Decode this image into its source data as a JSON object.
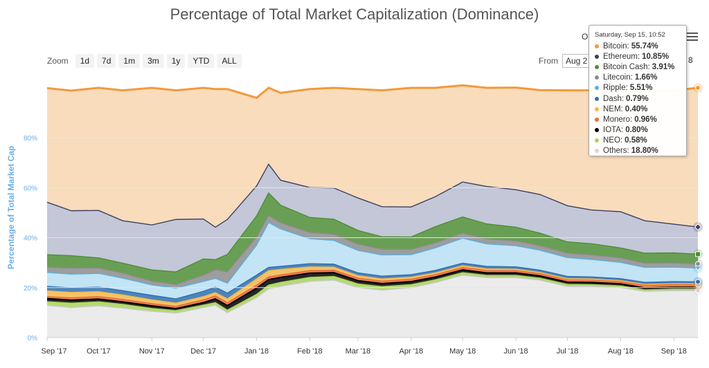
{
  "chart_data": {
    "type": "area",
    "title": "Percentage of Total Market Capitalization (Dominance)",
    "ylabel": "Percentage of Total Market Cap",
    "xlabel": "",
    "ylim": [
      0,
      100
    ],
    "yticks": [
      "0%",
      "20%",
      "40%",
      "60%",
      "80%"
    ],
    "ytick_values": [
      0,
      20,
      40,
      60,
      80
    ],
    "xtick_labels": [
      "Sep '17",
      "Oct '17",
      "Nov '17",
      "Dec '17",
      "Jan '18",
      "Feb '18",
      "Mar '18",
      "Apr '18",
      "May '18",
      "Jun '18",
      "Jul '18",
      "Aug '18",
      "Sep '18"
    ],
    "x": [
      "2017-09-01",
      "2017-09-15",
      "2017-10-01",
      "2017-10-15",
      "2017-11-01",
      "2017-11-15",
      "2017-12-01",
      "2017-12-08",
      "2017-12-15",
      "2018-01-01",
      "2018-01-08",
      "2018-01-15",
      "2018-02-01",
      "2018-02-15",
      "2018-03-01",
      "2018-03-15",
      "2018-04-01",
      "2018-04-15",
      "2018-05-01",
      "2018-05-15",
      "2018-06-01",
      "2018-06-15",
      "2018-07-01",
      "2018-07-15",
      "2018-08-01",
      "2018-08-15",
      "2018-09-01",
      "2018-09-15"
    ],
    "series": [
      {
        "name": "Others",
        "color": "#e8e8e8",
        "values": [
          12.9,
          12,
          12.7,
          11.8,
          10.5,
          9.8,
          12,
          13,
          10,
          16,
          19.5,
          20.5,
          22.5,
          23,
          20,
          19,
          20,
          22,
          25,
          24,
          24,
          23,
          20.5,
          20.5,
          20,
          18.5,
          18.8,
          18.8
        ]
      },
      {
        "name": "NEO",
        "color": "#a8d35a",
        "values": [
          1.5,
          1.8,
          1.6,
          1.5,
          1.2,
          1,
          1,
          1,
          1,
          1.3,
          1.5,
          1.6,
          1.6,
          1.5,
          1.5,
          1.4,
          1.2,
          1.1,
          1,
          0.9,
          0.9,
          0.8,
          0.8,
          0.7,
          0.7,
          0.6,
          0.6,
          0.58
        ]
      },
      {
        "name": "IOTA",
        "color": "#000000",
        "values": [
          1.2,
          1.2,
          1.1,
          1,
          1,
          0.8,
          1,
          1.5,
          1.8,
          2.5,
          2.2,
          2,
          1.7,
          1.5,
          1.3,
          1.2,
          1.2,
          1.1,
          1.1,
          1,
          1,
          0.9,
          0.9,
          0.9,
          0.8,
          0.8,
          0.8,
          0.8
        ]
      },
      {
        "name": "Monero",
        "color": "#e86b3a",
        "values": [
          0.8,
          0.9,
          1,
          1,
          0.9,
          0.9,
          1.1,
          1.2,
          1.2,
          1.2,
          1.1,
          1,
          1,
          1,
          1,
          1,
          1,
          1,
          1,
          1,
          0.9,
          0.9,
          0.9,
          0.9,
          0.9,
          1,
          1,
          0.96
        ]
      },
      {
        "name": "NEM",
        "color": "#f2b84b",
        "values": [
          2.3,
          2.2,
          2,
          1.8,
          1.5,
          1.3,
          1.3,
          1.3,
          1.5,
          2.5,
          2.5,
          2.2,
          1.5,
          1.2,
          1,
          0.9,
          0.8,
          0.7,
          0.7,
          0.6,
          0.6,
          0.5,
          0.5,
          0.5,
          0.4,
          0.4,
          0.4,
          0.4
        ]
      },
      {
        "name": "Dash",
        "color": "#2f6fb0",
        "values": [
          1.8,
          1.8,
          1.8,
          1.7,
          1.8,
          1.7,
          2.1,
          2.2,
          2.3,
          1.5,
          1.3,
          1.2,
          1.3,
          1.2,
          1.1,
          1.1,
          1,
          1,
          1,
          1,
          0.9,
          0.9,
          0.9,
          0.8,
          0.8,
          0.8,
          0.8,
          0.79
        ]
      },
      {
        "name": "Ripple",
        "color": "#b7dff3",
        "values": [
          5.6,
          5.5,
          5.5,
          5,
          4.2,
          4.3,
          4,
          3.5,
          4,
          12,
          18,
          15,
          10,
          9.5,
          9,
          8.5,
          8,
          9,
          10,
          9,
          8.5,
          8,
          7.5,
          7,
          6.5,
          6,
          5.8,
          5.51
        ]
      },
      {
        "name": "Litecoin",
        "color": "#8c8c8c",
        "values": [
          2.1,
          2.4,
          2.2,
          2,
          1.5,
          1.5,
          2.5,
          3.5,
          4.5,
          3.2,
          2.8,
          2.5,
          2.5,
          2.5,
          2.5,
          2.3,
          2.1,
          2,
          2,
          2,
          1.9,
          1.8,
          1.8,
          1.8,
          1.8,
          1.7,
          1.7,
          1.66
        ]
      },
      {
        "name": "Bitcoin Cash",
        "color": "#4f8e36",
        "values": [
          5,
          5,
          4,
          4,
          4.5,
          5,
          6.5,
          4,
          7,
          8.5,
          9,
          7,
          6,
          6,
          5.5,
          5,
          5,
          6.5,
          6.5,
          6,
          5.5,
          5,
          4.5,
          4.5,
          4,
          4,
          4,
          3.91
        ]
      },
      {
        "name": "Ethereum",
        "color": "#b8bdd1",
        "values": [
          21,
          18,
          19,
          17,
          18,
          21,
          16,
          13,
          14,
          12,
          11.5,
          10,
          12,
          12.5,
          13,
          12,
          12,
          12,
          14,
          15,
          15,
          15.5,
          14.5,
          13.5,
          14.5,
          13,
          11.5,
          10.85
        ]
      },
      {
        "name": "Bitcoin",
        "color": "#f7d6b0",
        "values": [
          45.7,
          48.1,
          49.1,
          52.2,
          54.9,
          51.7,
          52.5,
          55.3,
          52.2,
          35.3,
          30.6,
          35,
          39.4,
          40.1,
          43.6,
          46.6,
          47.7,
          43.6,
          38.7,
          39.5,
          40.9,
          41.8,
          46.2,
          47.9,
          48.6,
          52.2,
          53.6,
          55.74
        ]
      }
    ],
    "tooltip": {
      "date": "Saturday, Sep 15, 10:52",
      "items": [
        {
          "name": "Bitcoin",
          "value": "55.74%",
          "color": "#f29a3a"
        },
        {
          "name": "Ethereum",
          "value": "10.85%",
          "color": "#3d3f5e"
        },
        {
          "name": "Bitcoin Cash",
          "value": "3.91%",
          "color": "#4f8e36"
        },
        {
          "name": "Litecoin",
          "value": "1.66%",
          "color": "#8c8c8c"
        },
        {
          "name": "Ripple",
          "value": "5.51%",
          "color": "#5bb0e0"
        },
        {
          "name": "Dash",
          "value": "0.79%",
          "color": "#2f6fb0"
        },
        {
          "name": "NEM",
          "value": "0.40%",
          "color": "#f2b84b"
        },
        {
          "name": "Monero",
          "value": "0.96%",
          "color": "#e86b3a"
        },
        {
          "name": "IOTA",
          "value": "0.80%",
          "color": "#000000"
        },
        {
          "name": "NEO",
          "value": "0.58%",
          "color": "#a8d35a"
        },
        {
          "name": "Others",
          "value": "18.80%",
          "color": "#d8d8d8"
        }
      ]
    }
  },
  "controls": {
    "zoom_label": "Zoom",
    "zoom_buttons": [
      "1d",
      "7d",
      "1m",
      "3m",
      "1y",
      "YTD",
      "ALL"
    ],
    "from_label": "From",
    "from_value": "Aug 2",
    "to_fragment": "8",
    "o_fragment": "O"
  },
  "colors": {
    "bitcoin_line": "#f29a3a",
    "ethereum_line": "#3d3f5e",
    "axis_label": "#6aaee6"
  }
}
